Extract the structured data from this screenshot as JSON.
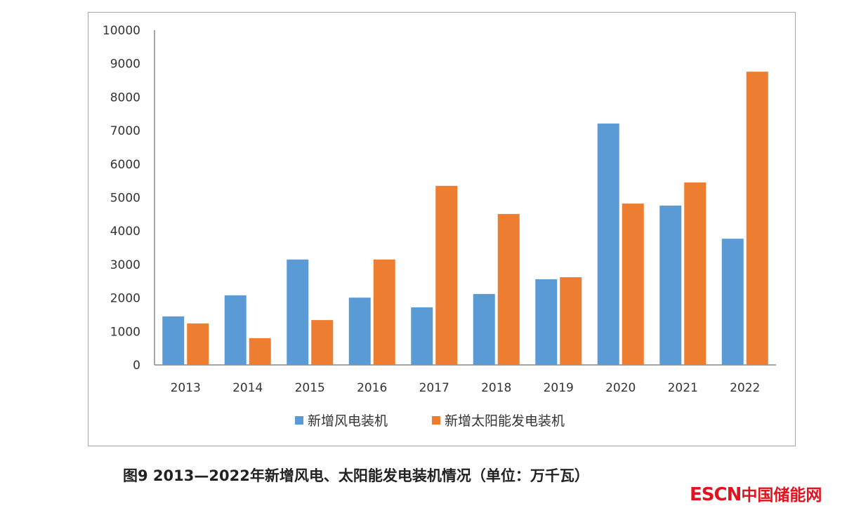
{
  "chart_data": {
    "type": "bar",
    "title": "",
    "xlabel": "",
    "ylabel": "",
    "categories": [
      "2013",
      "2014",
      "2015",
      "2016",
      "2017",
      "2018",
      "2019",
      "2020",
      "2021",
      "2022"
    ],
    "series": [
      {
        "name": "新增风电装机",
        "color": "#5b9bd5",
        "values": [
          1450,
          2080,
          3150,
          2010,
          1720,
          2120,
          2560,
          7210,
          4760,
          3770
        ]
      },
      {
        "name": "新增太阳能发电装机",
        "color": "#ed7d31",
        "values": [
          1240,
          800,
          1340,
          3150,
          5350,
          4510,
          2620,
          4820,
          5450,
          8760
        ]
      }
    ],
    "ylim": [
      0,
      10000
    ],
    "yticks": [
      "0",
      "1000",
      "2000",
      "3000",
      "4000",
      "5000",
      "6000",
      "7000",
      "8000",
      "9000",
      "10000"
    ],
    "grid": false,
    "legend": "bottom"
  },
  "caption": "图9  2013—2022年新增风电、太阳能发电装机情况（单位：万千瓦）",
  "watermark": {
    "en": "ESCN",
    "cn": "中国储能网"
  }
}
